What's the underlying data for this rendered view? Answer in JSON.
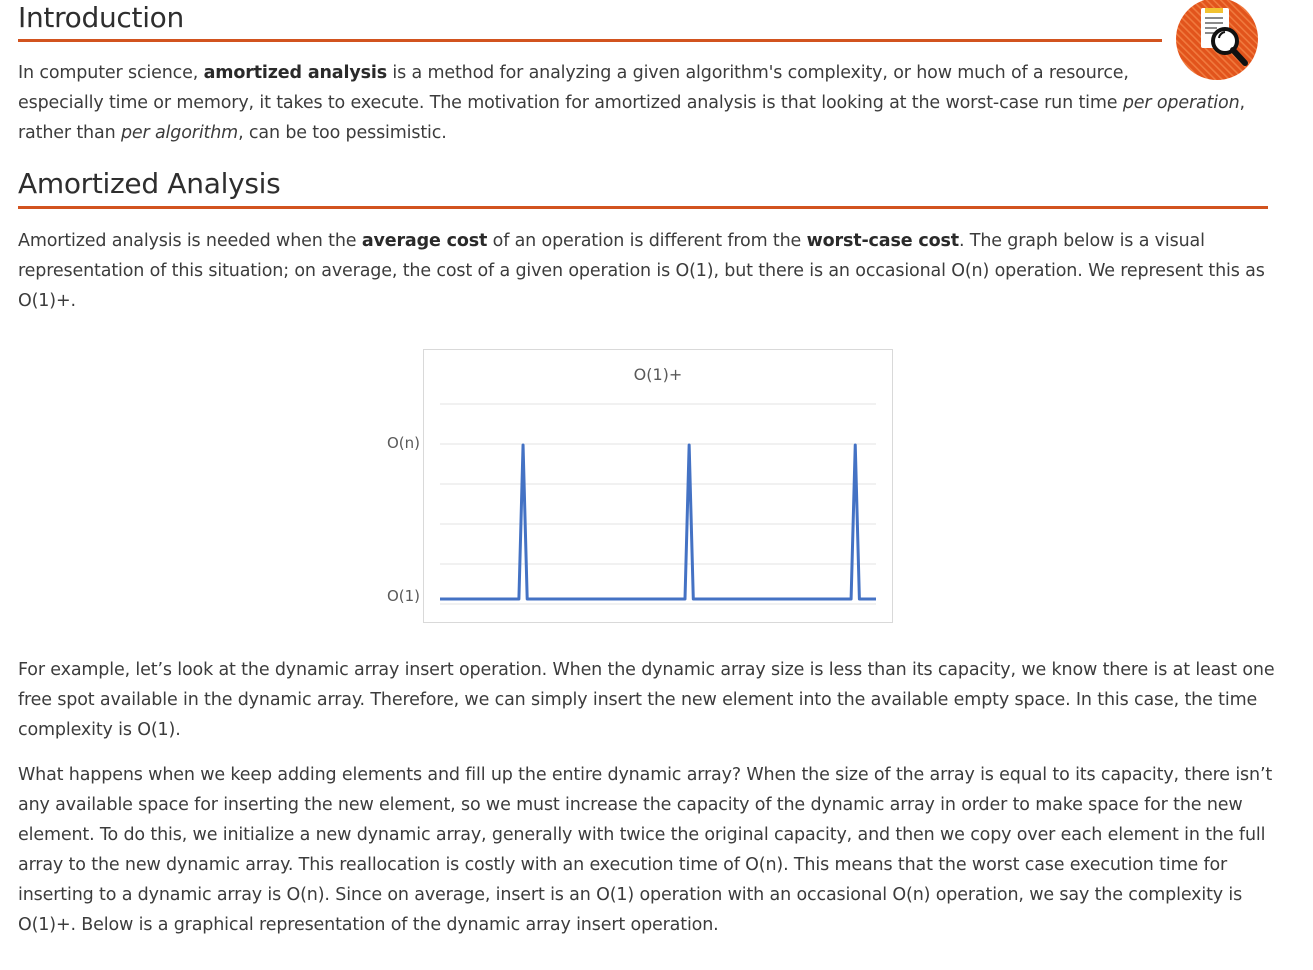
{
  "sections": {
    "intro": {
      "heading": "Introduction",
      "para": [
        {
          "t": "In computer science, "
        },
        {
          "t": "amortized analysis",
          "b": true
        },
        {
          "t": " is a method for analyzing a given algorithm's complexity, or how much of a resource,"
        },
        {
          "br": true
        },
        {
          "t": "especially time or memory, it takes to execute. The motivation for amortized analysis is that looking at the worst-case run time "
        },
        {
          "t": "per operation",
          "i": true
        },
        {
          "t": ","
        },
        {
          "br": true
        },
        {
          "t": "rather than "
        },
        {
          "t": "per algorithm",
          "i": true
        },
        {
          "t": ", can be too pessimistic."
        }
      ]
    },
    "amortized": {
      "heading": "Amortized Analysis",
      "para1": [
        {
          "t": "Amortized analysis is needed when the "
        },
        {
          "t": "average cost",
          "b": true
        },
        {
          "t": " of an operation is different from the "
        },
        {
          "t": "worst-case cost",
          "b": true
        },
        {
          "t": ". The graph below is a visual"
        },
        {
          "br": true
        },
        {
          "t": "representation of this situation; on average, the cost of a given operation is O(1), but there is an occasional O(n) operation. We represent this as"
        },
        {
          "br": true
        },
        {
          "t": "O(1)+."
        }
      ],
      "para2": [
        {
          "t": "For example, let’s look at the dynamic array insert operation. When the dynamic array size is less than its capacity, we know there is at least one"
        },
        {
          "br": true
        },
        {
          "t": "free spot available in the dynamic array. Therefore, we can simply insert the new element into the available empty space. In this case, the time"
        },
        {
          "br": true
        },
        {
          "t": "complexity is O(1)."
        }
      ],
      "para3": [
        {
          "t": "What happens when we keep adding elements and fill up the entire dynamic array? When the size of the array is equal to its capacity, there isn’t"
        },
        {
          "br": true
        },
        {
          "t": "any available space for inserting the new element, so we must increase the capacity of the dynamic array in order to make space for the new"
        },
        {
          "br": true
        },
        {
          "t": "element. To do this, we initialize a new dynamic array, generally with twice the original capacity, and then we copy over each element in the full"
        },
        {
          "br": true
        },
        {
          "t": "array to the new dynamic array. This reallocation is costly with an execution time of O(n). This means that the worst case execution time for"
        },
        {
          "br": true
        },
        {
          "t": "inserting to a dynamic array is O(n). Since on average, insert is an O(1) operation with an occasional O(n) operation, we say the complexity is"
        },
        {
          "br": true
        },
        {
          "t": "O(1)+. Below is a graphical representation of the dynamic array insert operation."
        }
      ]
    }
  },
  "badge_icon": "document-magnifier-icon",
  "colors": {
    "accent": "#d2531f",
    "line": "#4472c4",
    "text": "#3c3c3c"
  },
  "chart_data": {
    "type": "line",
    "title": "O(1)+",
    "xlabel": "",
    "ylabel": "",
    "yticks": [
      "O(1)",
      "O(n)"
    ],
    "ylim": [
      0,
      1
    ],
    "x": [
      0,
      1,
      2,
      3,
      4,
      5,
      6,
      7,
      8,
      9,
      10,
      11,
      12,
      13,
      14,
      15,
      16,
      17,
      18,
      19,
      20,
      21,
      22,
      23,
      24,
      25,
      26,
      27,
      28,
      29,
      30,
      31,
      32,
      33,
      34,
      35,
      36,
      37,
      38,
      39,
      40,
      41,
      42,
      43,
      44,
      45,
      46,
      47,
      48,
      49,
      50,
      51,
      52,
      53,
      54,
      55,
      56,
      57,
      58,
      59,
      60,
      61,
      62,
      63,
      64,
      65,
      66,
      67,
      68,
      69,
      70,
      71,
      72,
      73,
      74,
      75,
      76,
      77,
      78,
      79,
      80,
      81,
      82,
      83,
      84,
      85,
      86,
      87,
      88,
      89,
      90,
      91,
      92,
      93,
      94,
      95,
      96,
      97,
      98,
      99,
      100,
      101,
      102,
      103,
      104,
      105
    ],
    "y": [
      0,
      0,
      0,
      0,
      0,
      0,
      0,
      0,
      0,
      0,
      0,
      0,
      0,
      0,
      0,
      0,
      0,
      0,
      0,
      0,
      1,
      0,
      0,
      0,
      0,
      0,
      0,
      0,
      0,
      0,
      0,
      0,
      0,
      0,
      0,
      0,
      0,
      0,
      0,
      0,
      0,
      0,
      0,
      0,
      0,
      0,
      0,
      0,
      0,
      0,
      0,
      0,
      0,
      0,
      0,
      0,
      0,
      0,
      0,
      0,
      1,
      0,
      0,
      0,
      0,
      0,
      0,
      0,
      0,
      0,
      0,
      0,
      0,
      0,
      0,
      0,
      0,
      0,
      0,
      0,
      0,
      0,
      0,
      0,
      0,
      0,
      0,
      0,
      0,
      0,
      0,
      0,
      0,
      0,
      0,
      0,
      0,
      0,
      0,
      0,
      1,
      0,
      0,
      0,
      0,
      0
    ],
    "grid": true
  }
}
